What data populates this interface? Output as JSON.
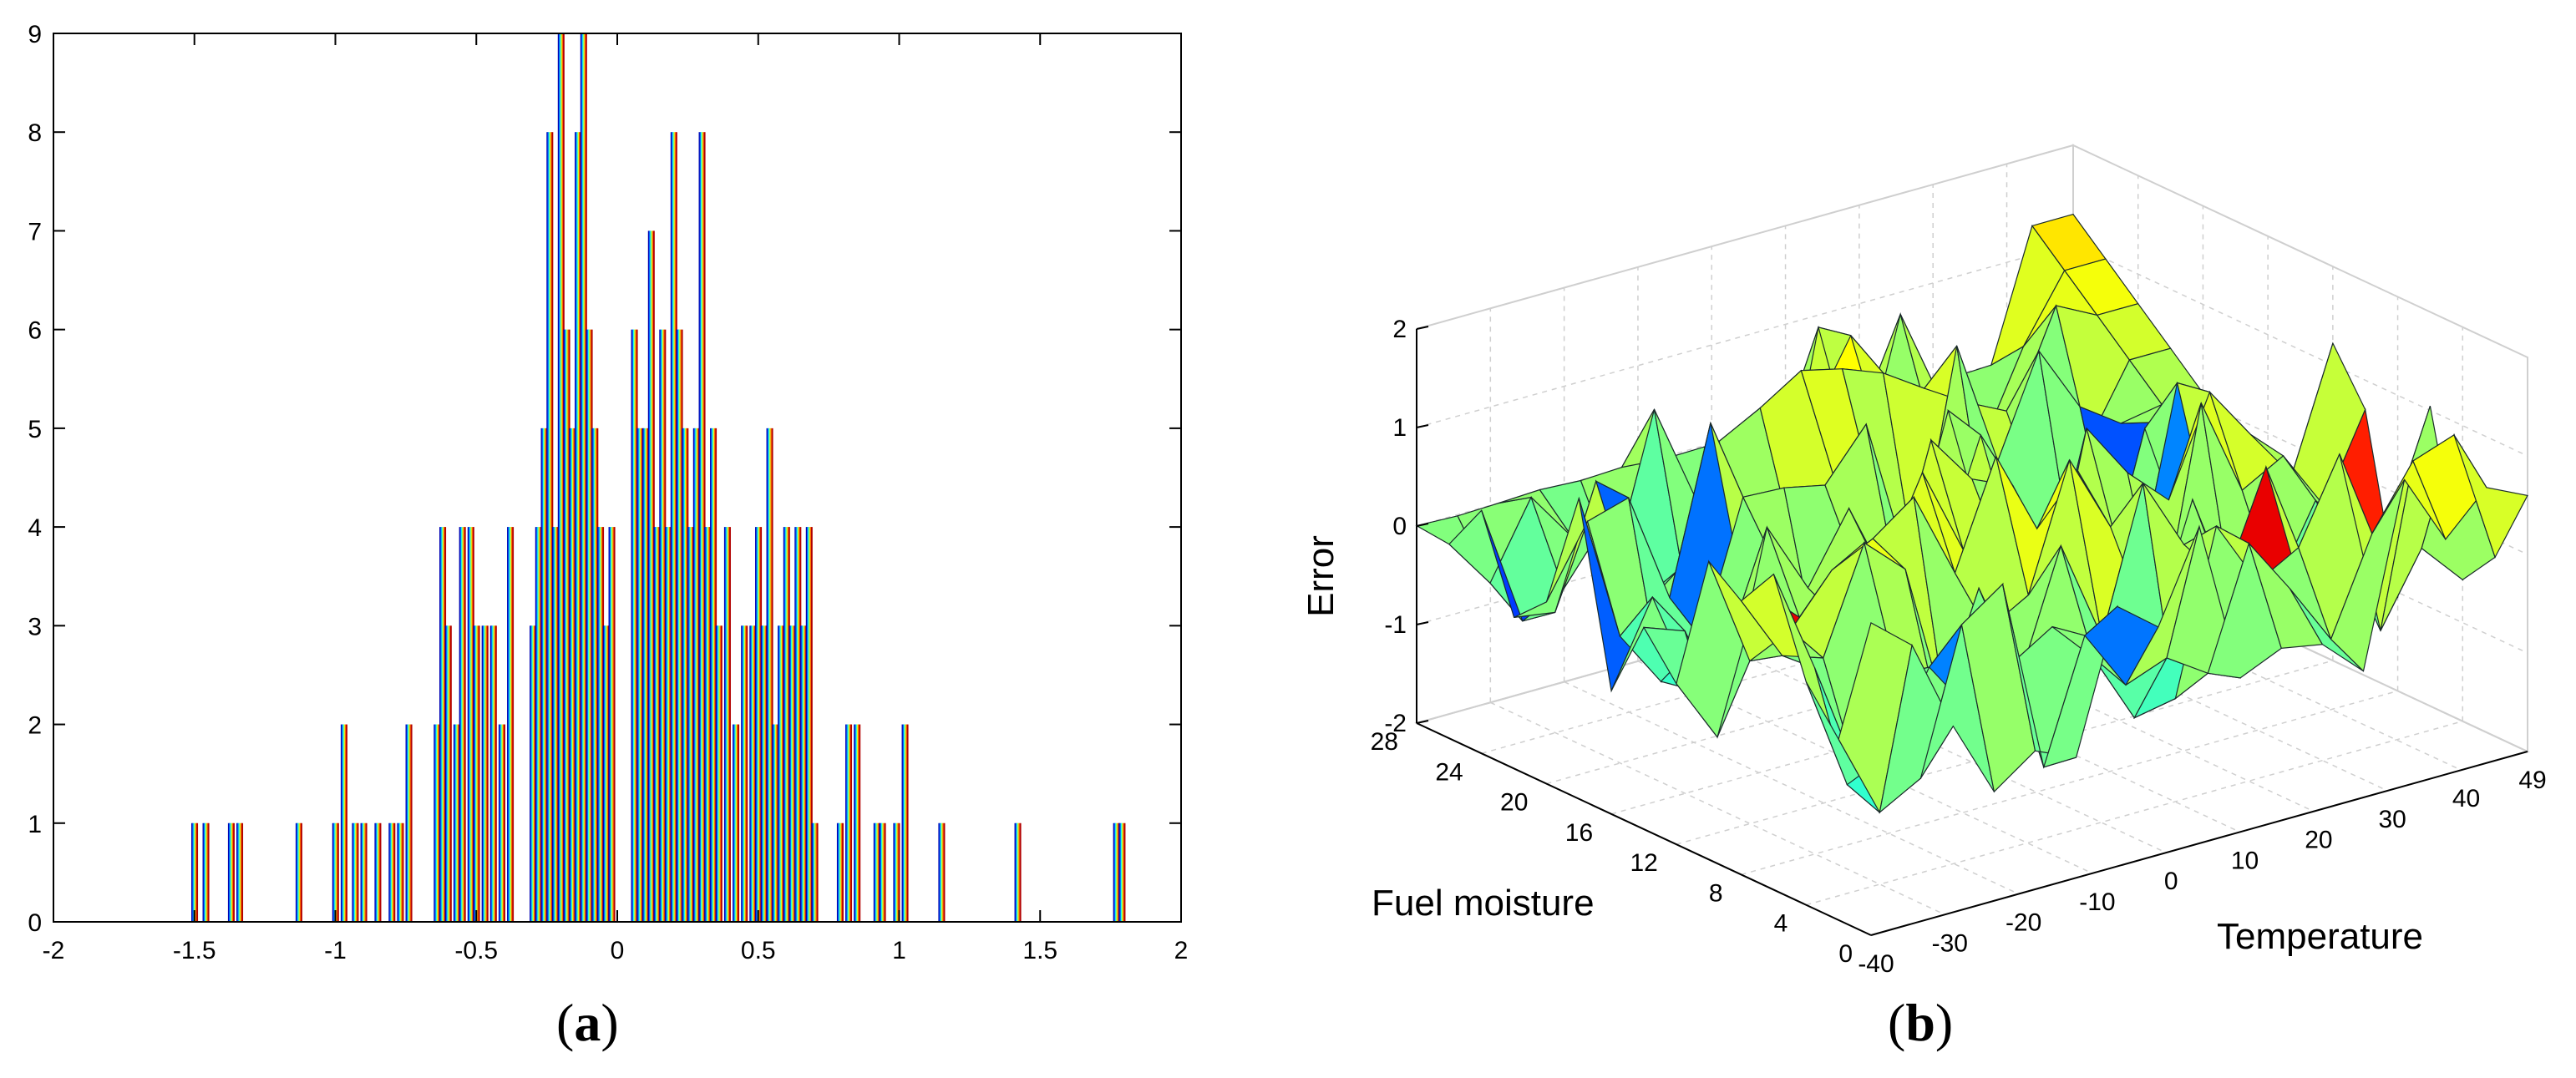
{
  "captions": {
    "a": "a",
    "b": "b"
  },
  "chart_data": [
    {
      "type": "bar",
      "title": "",
      "xlabel": "",
      "ylabel": "",
      "xlim": [
        -2,
        2
      ],
      "ylim": [
        0,
        9
      ],
      "x_ticks": [
        "-2",
        "-1.5",
        "-1",
        "-0.5",
        "0",
        "0.5",
        "1",
        "1.5",
        "2"
      ],
      "y_ticks": [
        "0",
        "1",
        "2",
        "3",
        "4",
        "5",
        "6",
        "7",
        "8",
        "9"
      ],
      "colormap": "jet",
      "bins": [
        {
          "x": -1.5,
          "count": 1
        },
        {
          "x": -1.46,
          "count": 1
        },
        {
          "x": -1.37,
          "count": 1
        },
        {
          "x": -1.34,
          "count": 1
        },
        {
          "x": -1.13,
          "count": 1
        },
        {
          "x": -1.0,
          "count": 1
        },
        {
          "x": -0.97,
          "count": 2
        },
        {
          "x": -0.93,
          "count": 1
        },
        {
          "x": -0.9,
          "count": 1
        },
        {
          "x": -0.85,
          "count": 1
        },
        {
          "x": -0.8,
          "count": 1
        },
        {
          "x": -0.77,
          "count": 1
        },
        {
          "x": -0.74,
          "count": 2
        },
        {
          "x": -0.64,
          "count": 2
        },
        {
          "x": -0.62,
          "count": 4
        },
        {
          "x": -0.6,
          "count": 3
        },
        {
          "x": -0.57,
          "count": 2
        },
        {
          "x": -0.55,
          "count": 4
        },
        {
          "x": -0.52,
          "count": 4
        },
        {
          "x": -0.5,
          "count": 3
        },
        {
          "x": -0.47,
          "count": 3
        },
        {
          "x": -0.44,
          "count": 3
        },
        {
          "x": -0.41,
          "count": 2
        },
        {
          "x": -0.38,
          "count": 4
        },
        {
          "x": -0.3,
          "count": 3
        },
        {
          "x": -0.28,
          "count": 4
        },
        {
          "x": -0.26,
          "count": 5
        },
        {
          "x": -0.24,
          "count": 8
        },
        {
          "x": -0.22,
          "count": 4
        },
        {
          "x": -0.2,
          "count": 9
        },
        {
          "x": -0.18,
          "count": 6
        },
        {
          "x": -0.16,
          "count": 5
        },
        {
          "x": -0.14,
          "count": 8
        },
        {
          "x": -0.12,
          "count": 9
        },
        {
          "x": -0.1,
          "count": 6
        },
        {
          "x": -0.08,
          "count": 5
        },
        {
          "x": -0.06,
          "count": 4
        },
        {
          "x": -0.04,
          "count": 3
        },
        {
          "x": -0.02,
          "count": 4
        },
        {
          "x": 0.06,
          "count": 6
        },
        {
          "x": 0.08,
          "count": 5
        },
        {
          "x": 0.1,
          "count": 5
        },
        {
          "x": 0.12,
          "count": 7
        },
        {
          "x": 0.14,
          "count": 4
        },
        {
          "x": 0.16,
          "count": 6
        },
        {
          "x": 0.18,
          "count": 4
        },
        {
          "x": 0.2,
          "count": 8
        },
        {
          "x": 0.22,
          "count": 6
        },
        {
          "x": 0.24,
          "count": 5
        },
        {
          "x": 0.26,
          "count": 4
        },
        {
          "x": 0.28,
          "count": 5
        },
        {
          "x": 0.3,
          "count": 8
        },
        {
          "x": 0.32,
          "count": 4
        },
        {
          "x": 0.34,
          "count": 5
        },
        {
          "x": 0.36,
          "count": 3
        },
        {
          "x": 0.39,
          "count": 4
        },
        {
          "x": 0.42,
          "count": 2
        },
        {
          "x": 0.45,
          "count": 3
        },
        {
          "x": 0.48,
          "count": 3
        },
        {
          "x": 0.5,
          "count": 4
        },
        {
          "x": 0.52,
          "count": 3
        },
        {
          "x": 0.54,
          "count": 5
        },
        {
          "x": 0.56,
          "count": 2
        },
        {
          "x": 0.58,
          "count": 3
        },
        {
          "x": 0.6,
          "count": 4
        },
        {
          "x": 0.62,
          "count": 3
        },
        {
          "x": 0.64,
          "count": 4
        },
        {
          "x": 0.66,
          "count": 3
        },
        {
          "x": 0.68,
          "count": 4
        },
        {
          "x": 0.7,
          "count": 1
        },
        {
          "x": 0.79,
          "count": 1
        },
        {
          "x": 0.82,
          "count": 2
        },
        {
          "x": 0.85,
          "count": 2
        },
        {
          "x": 0.92,
          "count": 1
        },
        {
          "x": 0.94,
          "count": 1
        },
        {
          "x": 0.99,
          "count": 1
        },
        {
          "x": 1.02,
          "count": 2
        },
        {
          "x": 1.15,
          "count": 1
        },
        {
          "x": 1.42,
          "count": 1
        },
        {
          "x": 1.77,
          "count": 1
        },
        {
          "x": 1.79,
          "count": 1
        }
      ]
    },
    {
      "type": "surface3d",
      "title": "",
      "xlabel": "Fuel moisture",
      "ylabel": "Temperature",
      "zlabel": "Error",
      "xlim": [
        0,
        28
      ],
      "ylim": [
        -40,
        49
      ],
      "zlim": [
        -2,
        2
      ],
      "x_ticks": [
        "28",
        "24",
        "20",
        "16",
        "12",
        "8",
        "4",
        "0"
      ],
      "y_ticks": [
        "-40",
        "-30",
        "-20",
        "-10",
        "0",
        "10",
        "20",
        "30",
        "40",
        "49"
      ],
      "z_ticks": [
        "2",
        "1",
        "0",
        "-1",
        "-2"
      ],
      "colormap": "jet",
      "error_range": [
        -1.5,
        1.6
      ]
    }
  ]
}
